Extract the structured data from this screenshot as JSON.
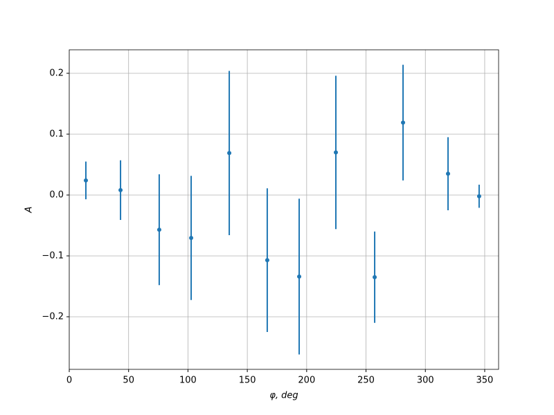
{
  "chart_data": {
    "type": "errorbar",
    "xlabel": "φ, deg",
    "ylabel": "A",
    "x": [
      14,
      43.2,
      75.8,
      102.7,
      134.8,
      166.8,
      193.7,
      224.6,
      257.3,
      281.2,
      319.1,
      345.3
    ],
    "values": [
      0.024,
      0.008,
      -0.057,
      -0.0705,
      0.069,
      -0.107,
      -0.134,
      0.07,
      -0.135,
      0.119,
      0.035,
      -0.002
    ],
    "errors": [
      0.031,
      0.049,
      0.091,
      0.102,
      0.135,
      0.118,
      0.128,
      0.126,
      0.075,
      0.095,
      0.06,
      0.019
    ],
    "color": "#1f77b4",
    "xlim": [
      0,
      361.7
    ],
    "ylim": [
      -0.2864,
      0.2386
    ],
    "xticks": [
      0,
      50,
      100,
      150,
      200,
      250,
      300,
      350
    ],
    "yticks": [
      {
        "value": -0.2,
        "label": "−0.2"
      },
      {
        "value": -0.1,
        "label": "−0.1"
      },
      {
        "value": 0,
        "label": "0.0"
      },
      0.1,
      0.2
    ],
    "grid": true
  }
}
